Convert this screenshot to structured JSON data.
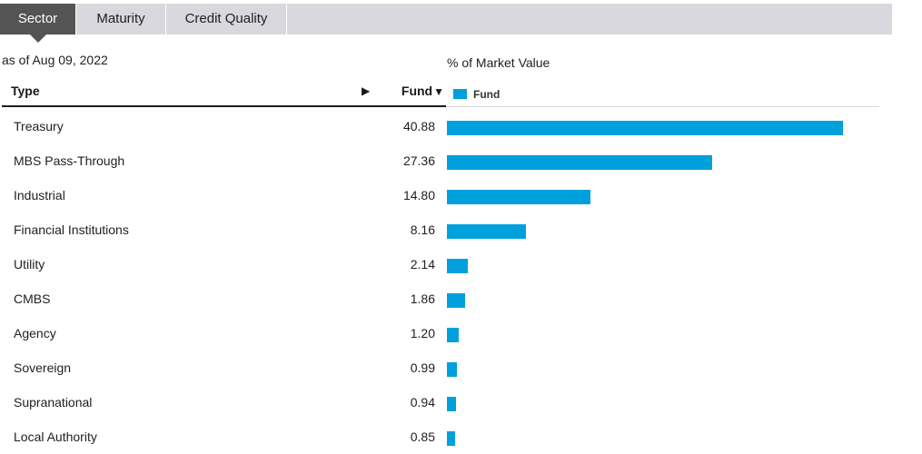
{
  "tabs": [
    {
      "label": "Sector",
      "active": true
    },
    {
      "label": "Maturity",
      "active": false
    },
    {
      "label": "Credit Quality",
      "active": false
    }
  ],
  "as_of": "as of Aug 09, 2022",
  "chart_label": "% of Market Value",
  "table": {
    "col_type": "Type",
    "sort_arrow": "▶",
    "col_fund": "Fund",
    "col_fund_sort": "▼"
  },
  "legend": {
    "label": "Fund",
    "color": "#00a0dc"
  },
  "chart_data": {
    "type": "bar",
    "orientation": "horizontal",
    "categories": [
      "Treasury",
      "MBS Pass-Through",
      "Industrial",
      "Financial Institutions",
      "Utility",
      "CMBS",
      "Agency",
      "Sovereign",
      "Supranational",
      "Local Authority"
    ],
    "series": [
      {
        "name": "Fund",
        "values": [
          40.88,
          27.36,
          14.8,
          8.16,
          2.14,
          1.86,
          1.2,
          0.99,
          0.94,
          0.85
        ]
      }
    ],
    "value_labels": [
      "40.88",
      "27.36",
      "14.80",
      "8.16",
      "2.14",
      "1.86",
      "1.20",
      "0.99",
      "0.94",
      "0.85"
    ],
    "xlim": [
      0,
      44.6
    ],
    "legend": "top-left",
    "grid": false
  }
}
